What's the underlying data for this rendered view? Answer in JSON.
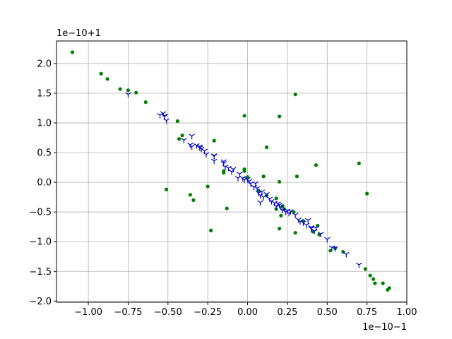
{
  "chart_data": {
    "type": "scatter",
    "title": "",
    "xlabel": "",
    "ylabel": "",
    "x_offset_label": "1e−10−1",
    "y_offset_label": "1e−10+1",
    "xlim": [
      -1.2,
      1.0
    ],
    "ylim": [
      -2.02,
      2.38
    ],
    "grid": true,
    "colors": {
      "series_a": "#008000",
      "series_b": "#0000cc",
      "axes": "#000000",
      "grid": "#b0b0b0"
    },
    "xticks": [
      {
        "value": -1.0,
        "label": "−1.00"
      },
      {
        "value": -0.75,
        "label": "−0.75"
      },
      {
        "value": -0.5,
        "label": "−0.50"
      },
      {
        "value": -0.25,
        "label": "−0.25"
      },
      {
        "value": 0.0,
        "label": "0.00"
      },
      {
        "value": 0.25,
        "label": "0.25"
      },
      {
        "value": 0.5,
        "label": "0.50"
      },
      {
        "value": 0.75,
        "label": "0.75"
      },
      {
        "value": 1.0,
        "label": "1.00"
      }
    ],
    "yticks": [
      {
        "value": -2.0,
        "label": "−2.0"
      },
      {
        "value": -1.5,
        "label": "−1.5"
      },
      {
        "value": -1.0,
        "label": "−1.0"
      },
      {
        "value": -0.5,
        "label": "−0.5"
      },
      {
        "value": 0.0,
        "label": "0.0"
      },
      {
        "value": 0.5,
        "label": "0.5"
      },
      {
        "value": 1.0,
        "label": "1.0"
      },
      {
        "value": 1.5,
        "label": "1.5"
      },
      {
        "value": 2.0,
        "label": "2.0"
      }
    ],
    "series": [
      {
        "marker": "dot",
        "color": "#008000",
        "points": [
          [
            -1.1,
            2.19
          ],
          [
            -0.92,
            1.83
          ],
          [
            -0.88,
            1.74
          ],
          [
            -0.8,
            1.57
          ],
          [
            -0.75,
            1.55
          ],
          [
            -0.7,
            1.51
          ],
          [
            -0.64,
            1.35
          ],
          [
            -0.44,
            1.03
          ],
          [
            -0.41,
            0.79
          ],
          [
            -0.43,
            0.73
          ],
          [
            -0.21,
            0.7
          ],
          [
            -0.15,
            0.19
          ],
          [
            -0.15,
            0.16
          ],
          [
            -0.02,
            0.22
          ],
          [
            -0.02,
            0.19
          ],
          [
            0.0,
            0.09
          ],
          [
            0.1,
            0.1
          ],
          [
            0.2,
            0.01
          ],
          [
            0.18,
            -0.27
          ],
          [
            0.23,
            -0.45
          ],
          [
            -0.02,
            1.12
          ],
          [
            0.2,
            1.11
          ],
          [
            0.3,
            1.48
          ],
          [
            0.12,
            0.59
          ],
          [
            0.31,
            0.1
          ],
          [
            0.43,
            0.29
          ],
          [
            0.7,
            0.32
          ],
          [
            0.75,
            -0.19
          ],
          [
            -0.51,
            -0.12
          ],
          [
            -0.36,
            -0.21
          ],
          [
            -0.34,
            -0.3
          ],
          [
            -0.25,
            -0.07
          ],
          [
            -0.13,
            -0.44
          ],
          [
            -0.23,
            -0.81
          ],
          [
            0.2,
            -0.78
          ],
          [
            0.3,
            -0.85
          ],
          [
            0.44,
            -0.73
          ],
          [
            0.45,
            -0.88
          ],
          [
            0.55,
            -1.11
          ],
          [
            0.52,
            -1.15
          ],
          [
            0.6,
            -1.17
          ],
          [
            0.74,
            -1.46
          ],
          [
            0.77,
            -1.57
          ],
          [
            0.79,
            -1.63
          ],
          [
            0.8,
            -1.7
          ],
          [
            0.85,
            -1.7
          ],
          [
            0.88,
            -1.81
          ],
          [
            0.89,
            -1.78
          ],
          [
            0.35,
            -0.65
          ],
          [
            0.41,
            -0.83
          ],
          [
            0.29,
            -0.5
          ],
          [
            0.21,
            -0.56
          ],
          [
            0.12,
            -0.22
          ],
          [
            0.07,
            -0.14
          ],
          [
            0.22,
            -0.4
          ],
          [
            0.18,
            -0.45
          ]
        ]
      },
      {
        "marker": "tri_down",
        "color": "#0000cc",
        "points": [
          [
            -0.75,
            1.48
          ],
          [
            -0.55,
            1.13
          ],
          [
            -0.53,
            1.16
          ],
          [
            -0.52,
            1.11
          ],
          [
            -0.51,
            1.04
          ],
          [
            -0.4,
            0.71
          ],
          [
            -0.36,
            0.63
          ],
          [
            -0.35,
            0.78
          ],
          [
            -0.35,
            0.6
          ],
          [
            -0.32,
            0.62
          ],
          [
            -0.3,
            0.58
          ],
          [
            -0.29,
            0.56
          ],
          [
            -0.27,
            0.53
          ],
          [
            -0.26,
            0.47
          ],
          [
            -0.21,
            0.44
          ],
          [
            -0.21,
            0.36
          ],
          [
            -0.15,
            0.32
          ],
          [
            -0.14,
            0.26
          ],
          [
            -0.12,
            0.24
          ],
          [
            -0.1,
            0.18
          ],
          [
            -0.09,
            0.22
          ],
          [
            -0.05,
            0.14
          ],
          [
            -0.03,
            0.07
          ],
          [
            -0.02,
            0.04
          ],
          [
            0.0,
            0.05
          ],
          [
            0.01,
            0.02
          ],
          [
            0.02,
            -0.02
          ],
          [
            0.04,
            -0.08
          ],
          [
            0.05,
            -0.02
          ],
          [
            0.06,
            -0.1
          ],
          [
            0.07,
            -0.18
          ],
          [
            0.08,
            -0.22
          ],
          [
            0.09,
            -0.16
          ],
          [
            0.1,
            -0.25
          ],
          [
            0.12,
            -0.2
          ],
          [
            0.14,
            -0.28
          ],
          [
            0.15,
            -0.32
          ],
          [
            0.17,
            -0.35
          ],
          [
            0.18,
            -0.4
          ],
          [
            0.19,
            -0.36
          ],
          [
            0.21,
            -0.42
          ],
          [
            0.22,
            -0.47
          ],
          [
            0.24,
            -0.5
          ],
          [
            0.26,
            -0.52
          ],
          [
            0.27,
            -0.49
          ],
          [
            0.3,
            -0.55
          ],
          [
            0.32,
            -0.63
          ],
          [
            0.33,
            -0.66
          ],
          [
            0.35,
            -0.68
          ],
          [
            0.37,
            -0.72
          ],
          [
            0.38,
            -0.64
          ],
          [
            0.4,
            -0.78
          ],
          [
            0.42,
            -0.82
          ],
          [
            0.43,
            -0.77
          ],
          [
            0.46,
            -0.87
          ],
          [
            0.5,
            -0.96
          ],
          [
            0.53,
            -1.1
          ],
          [
            0.55,
            -1.11
          ],
          [
            0.62,
            -1.21
          ],
          [
            0.7,
            -1.39
          ],
          [
            -0.15,
            0.35
          ],
          [
            -0.21,
            0.45
          ],
          [
            0.04,
            -0.08
          ],
          [
            -0.06,
            0.07
          ],
          [
            0.08,
            -0.34
          ],
          [
            0.2,
            -0.38
          ],
          [
            0.25,
            -0.48
          ],
          [
            0.4,
            -0.76
          ],
          [
            -0.3,
            0.6
          ],
          [
            -0.52,
            1.12
          ]
        ]
      }
    ]
  }
}
